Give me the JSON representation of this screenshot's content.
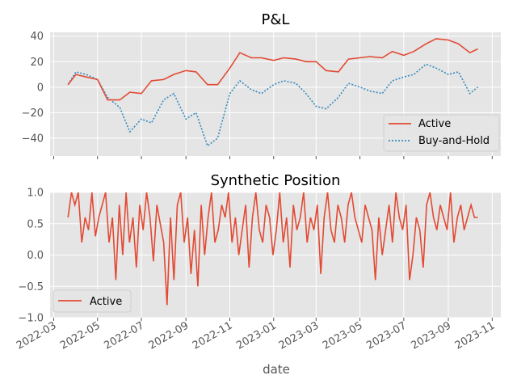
{
  "colors": {
    "active": "#e24a33",
    "buy_and_hold": "#348abd",
    "axes_bg": "#e5e5e5",
    "grid": "#ffffff"
  },
  "chart_data": [
    {
      "type": "line",
      "title": "P&L",
      "xlabel": "",
      "ylabel": "",
      "ylim": [
        -54,
        43
      ],
      "yticks": [
        40,
        20,
        0,
        -20,
        -40
      ],
      "ytick_labels": [
        "40",
        "20",
        "0",
        "−20",
        "−40"
      ],
      "grid": true,
      "legend": {
        "placement": "lower-right",
        "entries": [
          "Active",
          "Buy-and-Hold"
        ]
      },
      "x_dates": [
        "2022-03-21",
        "2022-04-01",
        "2022-04-15",
        "2022-05-01",
        "2022-05-15",
        "2022-06-01",
        "2022-06-15",
        "2022-07-01",
        "2022-07-15",
        "2022-08-01",
        "2022-08-15",
        "2022-09-01",
        "2022-09-15",
        "2022-10-01",
        "2022-10-15",
        "2022-11-01",
        "2022-11-15",
        "2022-12-01",
        "2022-12-15",
        "2023-01-01",
        "2023-01-15",
        "2023-02-01",
        "2023-02-15",
        "2023-03-01",
        "2023-03-15",
        "2023-04-01",
        "2023-04-15",
        "2023-05-01",
        "2023-05-15",
        "2023-06-01",
        "2023-06-15",
        "2023-07-01",
        "2023-07-15",
        "2023-08-01",
        "2023-08-15",
        "2023-09-01",
        "2023-09-15",
        "2023-10-01",
        "2023-10-12"
      ],
      "series": [
        {
          "name": "Active",
          "style": "solid",
          "values": [
            2,
            10,
            8,
            6,
            -10,
            -10,
            -4,
            -5,
            5,
            6,
            10,
            13,
            12,
            2,
            2,
            15,
            27,
            23,
            23,
            21,
            23,
            22,
            20,
            20,
            13,
            12,
            22,
            23,
            24,
            23,
            28,
            25,
            28,
            34,
            38,
            37,
            34,
            27,
            30
          ]
        },
        {
          "name": "Buy-and-Hold",
          "style": "dotted",
          "values": [
            2,
            12,
            10,
            6,
            -8,
            -16,
            -35,
            -25,
            -28,
            -10,
            -5,
            -25,
            -20,
            -46,
            -40,
            -5,
            5,
            -2,
            -5,
            2,
            5,
            3,
            -5,
            -15,
            -17,
            -8,
            3,
            0,
            -3,
            -5,
            5,
            8,
            10,
            18,
            15,
            10,
            12,
            -5,
            0
          ]
        }
      ]
    },
    {
      "type": "line",
      "title": "Synthetic Position",
      "xlabel": "date",
      "ylabel": "",
      "ylim": [
        -1.0,
        1.0
      ],
      "yticks": [
        1.0,
        0.5,
        0.0,
        -0.5,
        -1.0
      ],
      "ytick_labels": [
        "1.0",
        "0.5",
        "0.0",
        "−0.5",
        "−1.0"
      ],
      "grid": true,
      "legend": {
        "placement": "lower-left",
        "entries": [
          "Active"
        ]
      },
      "xtick_labels": [
        "2022-03",
        "2022-05",
        "2022-07",
        "2022-09",
        "2022-11",
        "2023-01",
        "2023-03",
        "2023-05",
        "2023-07",
        "2023-09",
        "2023-11"
      ],
      "series": [
        {
          "name": "Active",
          "style": "solid",
          "values": [
            0.6,
            1.0,
            0.8,
            1.0,
            0.2,
            0.6,
            0.4,
            1.0,
            0.3,
            0.6,
            0.8,
            1.0,
            0.2,
            0.6,
            -0.4,
            0.8,
            0.0,
            1.0,
            0.2,
            0.6,
            -0.2,
            0.8,
            0.4,
            1.0,
            0.6,
            -0.1,
            0.8,
            0.5,
            0.2,
            -0.8,
            0.6,
            -0.4,
            0.8,
            1.0,
            0.2,
            0.6,
            -0.3,
            0.4,
            -0.5,
            0.8,
            0.0,
            0.6,
            1.0,
            0.2,
            0.4,
            0.8,
            0.6,
            1.0,
            0.2,
            0.6,
            0.0,
            0.4,
            0.8,
            -0.2,
            0.6,
            1.0,
            0.4,
            0.2,
            0.8,
            0.6,
            0.0,
            0.4,
            1.0,
            0.2,
            0.6,
            -0.2,
            0.8,
            0.4,
            0.6,
            1.0,
            0.2,
            0.6,
            0.4,
            0.8,
            -0.3,
            0.6,
            1.0,
            0.4,
            0.2,
            0.8,
            0.6,
            0.2,
            0.8,
            1.0,
            0.6,
            0.4,
            0.2,
            0.8,
            0.6,
            0.4,
            -0.4,
            0.6,
            0.0,
            0.4,
            0.8,
            0.2,
            1.0,
            0.6,
            0.4,
            0.8,
            -0.4,
            0.0,
            0.6,
            0.4,
            -0.2,
            0.8,
            1.0,
            0.6,
            0.4,
            0.8,
            0.6,
            0.4,
            1.0,
            0.2,
            0.6,
            0.8,
            0.4,
            0.6,
            0.8,
            0.6,
            0.6
          ]
        }
      ]
    }
  ]
}
